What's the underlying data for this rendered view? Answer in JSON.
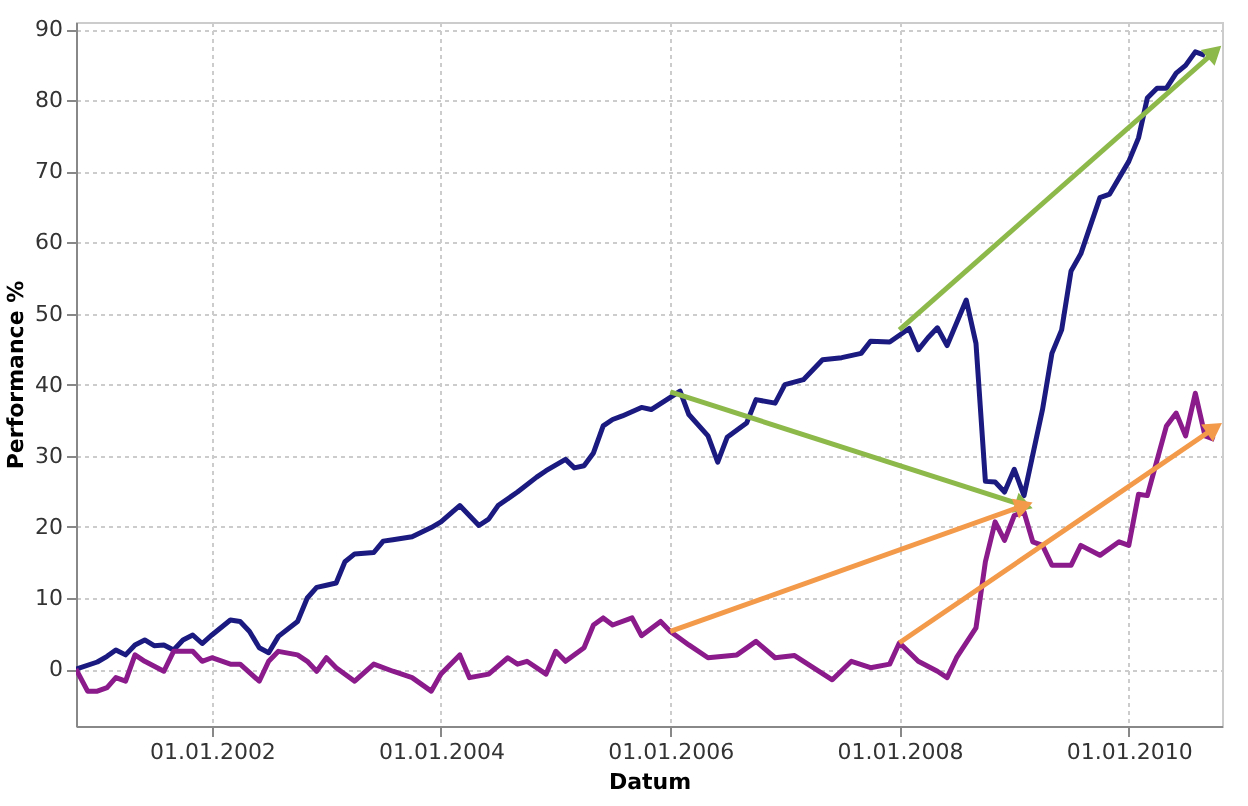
{
  "chart_data": {
    "type": "line",
    "xlabel": "Datum",
    "ylabel": "Performance %",
    "xlim": [
      "2000-10-25",
      "2010-10-25"
    ],
    "ylim": [
      -8,
      91
    ],
    "xticks": [
      {
        "value": "2002-01-01",
        "label": "01.01.2002"
      },
      {
        "value": "2004-01-01",
        "label": "01.01.2004"
      },
      {
        "value": "2006-01-01",
        "label": "01.01.2006"
      },
      {
        "value": "2008-01-01",
        "label": "01.01.2008"
      },
      {
        "value": "2010-01-01",
        "label": "01.01.2010"
      }
    ],
    "yticks": [
      0,
      10,
      20,
      30,
      40,
      50,
      60,
      70,
      80,
      90
    ],
    "grid": true,
    "marker": "none",
    "line_style": "solid",
    "series": [
      {
        "color": "#1a1a80",
        "x": [
          "2000-10-25",
          "2001-01",
          "2001-02",
          "2001-03",
          "2001-04",
          "2001-05",
          "2001-06",
          "2001-07",
          "2001-08",
          "2001-09",
          "2001-10",
          "2001-11",
          "2001-12",
          "2002-01",
          "2002-03",
          "2002-04",
          "2002-05",
          "2002-06",
          "2002-07",
          "2002-08",
          "2002-10",
          "2002-11",
          "2002-12",
          "2003-01",
          "2003-02",
          "2003-03",
          "2003-04",
          "2003-06",
          "2003-07",
          "2003-08",
          "2003-10",
          "2003-12",
          "2004-01",
          "2004-03",
          "2004-05",
          "2004-06",
          "2004-07",
          "2004-09",
          "2004-11",
          "2004-12",
          "2005-02",
          "2005-03",
          "2005-04",
          "2005-05",
          "2005-06",
          "2005-07",
          "2005-08",
          "2005-10",
          "2005-11",
          "2006-02",
          "2006-03",
          "2006-05",
          "2006-06",
          "2006-07",
          "2006-09",
          "2006-10",
          "2006-12",
          "2007-01",
          "2007-03",
          "2007-05",
          "2007-07",
          "2007-09",
          "2007-10",
          "2007-12",
          "2008-02",
          "2008-03",
          "2008-04",
          "2008-05",
          "2008-06",
          "2008-08",
          "2008-09",
          "2008-10",
          "2008-11",
          "2008-12",
          "2009-01",
          "2009-02",
          "2009-04",
          "2009-05",
          "2009-06",
          "2009-07",
          "2009-08",
          "2009-10",
          "2009-11",
          "2010-01",
          "2010-02",
          "2010-03",
          "2010-04",
          "2010-05",
          "2010-06",
          "2010-07",
          "2010-08",
          "2010-09"
        ],
        "values": [
          0,
          1,
          1.8,
          2.7,
          2,
          3.4,
          4.1,
          3.3,
          3.4,
          2.7,
          4.1,
          4.8,
          3.6,
          4.8,
          6.9,
          6.7,
          5.3,
          3,
          2.3,
          4.6,
          6.7,
          10,
          11.5,
          11.8,
          12.1,
          15.1,
          16.2,
          16.4,
          18,
          18.2,
          18.6,
          19.9,
          20.7,
          23,
          20.2,
          21.1,
          23,
          24.9,
          27,
          27.9,
          29.5,
          28.3,
          28.6,
          30.4,
          34.2,
          35.1,
          35.6,
          36.8,
          36.5,
          39.1,
          35.8,
          32.8,
          29.1,
          32.6,
          34.6,
          37.9,
          37.4,
          40,
          40.7,
          43.5,
          43.8,
          44.4,
          46.1,
          46,
          47.9,
          44.9,
          46.6,
          48,
          45.5,
          51.9,
          45.8,
          26.4,
          26.3,
          24.9,
          28.1,
          24.4,
          36.5,
          44.4,
          47.7,
          56,
          58.4,
          66.3,
          66.8,
          71.4,
          74.7,
          80.3,
          81.7,
          81.7,
          83.8,
          84.9,
          86.8,
          86.3
        ]
      },
      {
        "color": "#8b1a8b",
        "x": [
          "2000-10-25",
          "2000-12",
          "2001-01",
          "2001-02",
          "2001-03",
          "2001-04",
          "2001-05",
          "2001-06",
          "2001-08",
          "2001-09",
          "2001-11",
          "2001-12",
          "2002-01",
          "2002-03",
          "2002-04",
          "2002-06",
          "2002-07",
          "2002-08",
          "2002-10",
          "2002-11",
          "2002-12",
          "2003-01",
          "2003-02",
          "2003-04",
          "2003-06",
          "2003-08",
          "2003-10",
          "2003-12",
          "2004-01",
          "2004-03",
          "2004-04",
          "2004-06",
          "2004-08",
          "2004-09",
          "2004-10",
          "2004-12",
          "2005-01",
          "2005-02",
          "2005-04",
          "2005-05",
          "2005-06",
          "2005-07",
          "2005-09",
          "2005-10",
          "2005-12",
          "2006-01",
          "2006-03",
          "2006-05",
          "2006-08",
          "2006-10",
          "2006-12",
          "2007-02",
          "2007-06",
          "2007-08",
          "2007-10",
          "2007-12",
          "2008-01",
          "2008-03",
          "2008-05",
          "2008-06",
          "2008-07",
          "2008-09",
          "2008-10",
          "2008-11",
          "2008-12",
          "2009-01",
          "2009-02",
          "2009-03",
          "2009-04",
          "2009-05",
          "2009-07",
          "2009-08",
          "2009-10",
          "2009-12",
          "2010-01",
          "2010-02",
          "2010-03",
          "2010-05",
          "2010-06",
          "2010-07",
          "2010-08",
          "2010-09",
          "2010-10"
        ],
        "values": [
          0,
          -3.1,
          -3.1,
          -2.6,
          -1.2,
          -1.7,
          2,
          1.1,
          -0.3,
          2.5,
          2.5,
          1.1,
          1.6,
          0.7,
          0.7,
          -1.7,
          1.1,
          2.5,
          2,
          1.1,
          -0.3,
          1.6,
          0.2,
          -1.7,
          0.7,
          -0.3,
          -1.2,
          -3.1,
          -0.7,
          2,
          -1.2,
          -0.7,
          1.6,
          0.7,
          1.1,
          -0.7,
          2.5,
          1.1,
          3,
          6.2,
          7.2,
          6.2,
          7.2,
          4.7,
          6.7,
          5.3,
          3.4,
          1.6,
          2,
          3.9,
          1.6,
          1.9,
          -1.5,
          1.1,
          0.2,
          0.7,
          3.7,
          1.1,
          -0.3,
          -1.2,
          1.6,
          5.8,
          15.1,
          20.7,
          18.1,
          21.6,
          22.1,
          17.9,
          17.4,
          14.6,
          14.6,
          17.4,
          16,
          17.9,
          17.4,
          24.6,
          24.4,
          34.2,
          36,
          32.8,
          38.8,
          32.8,
          32.3
        ]
      },
      {
        "type": "line",
        "color": "#8db84a",
        "x": [
          "2006-01",
          "2009-02"
        ],
        "values": [
          39,
          23
        ],
        "marker": "triangle"
      },
      {
        "type": "line",
        "color": "#8db84a",
        "x": [
          "2008-01",
          "2010-10"
        ],
        "values": [
          47.7,
          86.8
        ],
        "marker": "triangle"
      },
      {
        "type": "line",
        "color": "#f39a4a",
        "x": [
          "2006-01",
          "2009-02"
        ],
        "values": [
          5.3,
          23
        ],
        "marker": "triangle"
      },
      {
        "type": "line",
        "color": "#f39a4a",
        "x": [
          "2008-01",
          "2010-10"
        ],
        "values": [
          3.7,
          33.9
        ],
        "marker": "triangle"
      }
    ]
  }
}
